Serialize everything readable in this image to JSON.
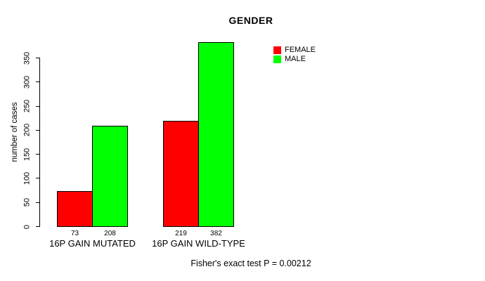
{
  "title": "GENDER",
  "caption": "Fisher's exact test P = 0.00212",
  "colors": {
    "female": "#ff0000",
    "male": "#00ff00",
    "axis": "#000000",
    "background": "#ffffff"
  },
  "y_axis": {
    "label": "number of cases",
    "ticks": [
      0,
      50,
      100,
      150,
      200,
      250,
      300,
      350
    ]
  },
  "legend": [
    {
      "label": "FEMALE",
      "color": "#ff0000"
    },
    {
      "label": "MALE",
      "color": "#00ff00"
    }
  ],
  "groups": [
    {
      "label": "16P GAIN MUTATED",
      "bars": [
        {
          "series": "FEMALE",
          "value": 73,
          "color": "#ff0000"
        },
        {
          "series": "MALE",
          "value": 208,
          "color": "#00ff00"
        }
      ]
    },
    {
      "label": "16P GAIN WILD-TYPE",
      "bars": [
        {
          "series": "FEMALE",
          "value": 219,
          "color": "#ff0000"
        },
        {
          "series": "MALE",
          "value": 382,
          "color": "#00ff00"
        }
      ]
    }
  ],
  "chart_data": {
    "type": "bar",
    "title": "GENDER",
    "xlabel": "",
    "ylabel": "number of cases",
    "categories": [
      "16P GAIN MUTATED",
      "16P GAIN WILD-TYPE"
    ],
    "series": [
      {
        "name": "FEMALE",
        "color": "#ff0000",
        "values": [
          73,
          219
        ]
      },
      {
        "name": "MALE",
        "color": "#00ff00",
        "values": [
          208,
          382
        ]
      }
    ],
    "bar_value_labels": [
      [
        73,
        208
      ],
      [
        219,
        382
      ]
    ],
    "ylim": [
      0,
      382
    ],
    "y_ticks": [
      0,
      50,
      100,
      150,
      200,
      250,
      300,
      350
    ],
    "grid": false,
    "legend_position": "top-right",
    "annotation": "Fisher's exact test P = 0.00212"
  }
}
